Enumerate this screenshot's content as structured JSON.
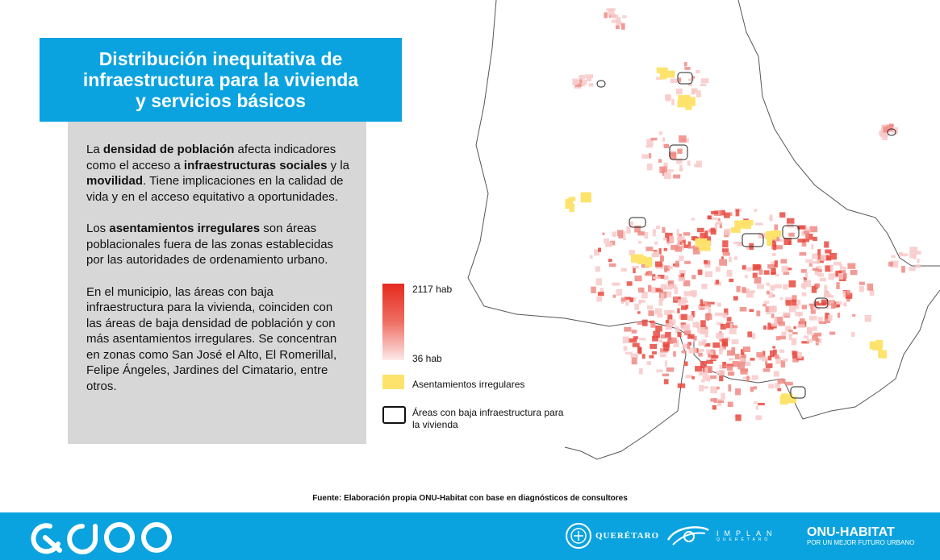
{
  "title": {
    "line1": "Distribución inequitativa de",
    "line2": "infraestructura para la vivienda",
    "line3": "y servicios básicos"
  },
  "info": {
    "p1": [
      {
        "text": "La ",
        "bold": false
      },
      {
        "text": "densidad de población",
        "bold": true
      },
      {
        "text": " afecta indicadores como el acceso a ",
        "bold": false
      },
      {
        "text": "infraestructuras sociales",
        "bold": true
      },
      {
        "text": " y la ",
        "bold": false
      },
      {
        "text": "movilidad",
        "bold": true
      },
      {
        "text": ". Tiene implicaciones en la calidad de vida y en el acceso equitativo a oportunidades.",
        "bold": false
      }
    ],
    "p2": [
      {
        "text": "Los ",
        "bold": false
      },
      {
        "text": "asentamientos irregulares",
        "bold": true
      },
      {
        "text": " son áreas poblacionales fuera de las zonas establecidas por las autoridades de ordenamiento urbano.",
        "bold": false
      }
    ],
    "p3": [
      {
        "text": "En el municipio, las áreas con baja infraestructura para la vivienda, coinciden con las áreas de baja densidad de población y con más asentamientos irregulares. Se concentran en zonas como San José el Alto, El Romerillal, Felipe Ángeles, Jardines del Cimatario, entre otros.",
        "bold": false
      }
    ]
  },
  "legend": {
    "density_max": "2117 hab",
    "density_min": "36 hab",
    "irregular_label": "Asentamientos irregulares",
    "low_infra_label": "Áreas con baja infraestructura para la vivienda"
  },
  "colors": {
    "brand_blue": "#0aa3df",
    "density_high": "#e52b1e",
    "density_low": "#fde9ea",
    "irregular": "#fde36b",
    "panel_gray": "#d7d7d7"
  },
  "source": "Fuente: Elaboración propia ONU-Habitat con base en diagnósticos de consultores",
  "footer": {
    "queretaro": "QUERÉTARO",
    "implan": "IMPLAN",
    "implan_sub": "QUERÉTARO",
    "onu": "ONU-HABITAT",
    "onu_sub": "POR UN MEJOR FUTURO URBANO"
  }
}
